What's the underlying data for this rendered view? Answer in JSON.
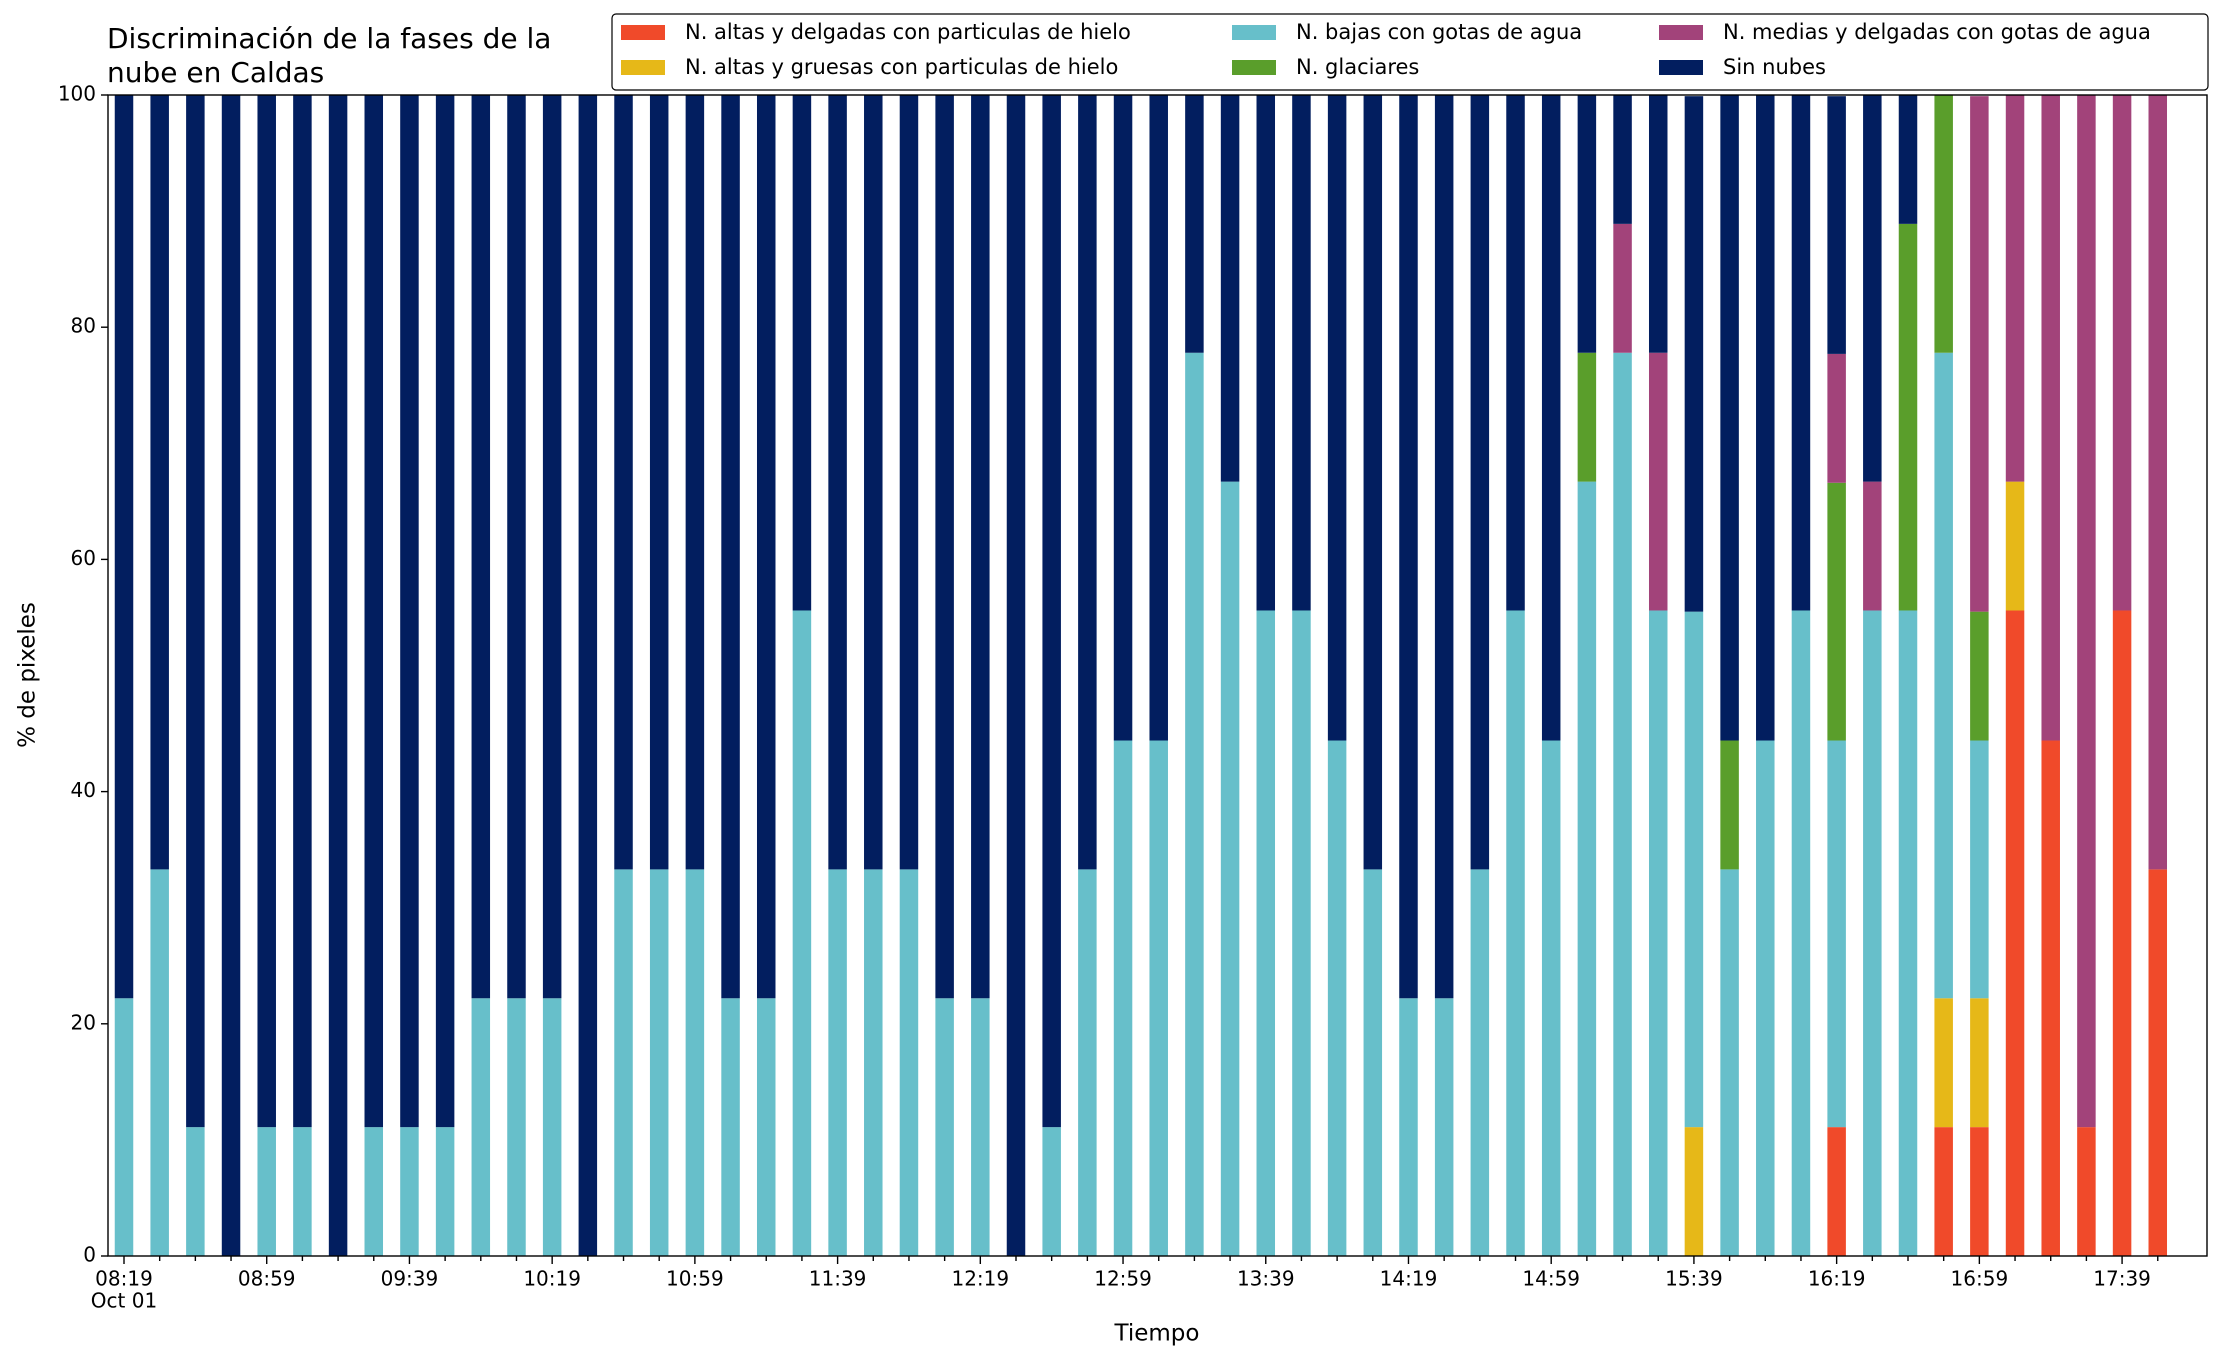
{
  "chart_data": {
    "type": "stacked_bar",
    "title": "Discriminación de la fases de la\nnube en Caldas",
    "xlabel": "Tiempo",
    "ylabel": "% de pixeles",
    "x_date_label": "Oct 01",
    "categories": [
      "08:19",
      null,
      null,
      null,
      "08:59",
      null,
      null,
      null,
      "09:39",
      null,
      null,
      null,
      "10:19",
      null,
      null,
      null,
      "10:59",
      null,
      null,
      null,
      "11:39",
      null,
      null,
      null,
      "12:19",
      null,
      null,
      null,
      "12:59",
      null,
      null,
      null,
      "13:39",
      null,
      null,
      null,
      "14:19",
      null,
      null,
      null,
      "14:59",
      null,
      null,
      null,
      "15:39",
      null,
      null,
      null,
      "16:19",
      null,
      null,
      null,
      "16:59",
      null,
      null,
      null,
      "17:39",
      null
    ],
    "ylim": [
      0,
      100
    ],
    "yticks": [
      0,
      20,
      40,
      60,
      80,
      100
    ],
    "legend_position": "upper right",
    "series": [
      {
        "name": "N. altas y delgadas con particulas de hielo",
        "color": "#f04a2a",
        "values": [
          0,
          0,
          0,
          0,
          0,
          0,
          0,
          0,
          0,
          0,
          0,
          0,
          0,
          0,
          0,
          0,
          0,
          0,
          0,
          0,
          0,
          0,
          0,
          0,
          0,
          0,
          0,
          0,
          0,
          0,
          0,
          0,
          0,
          0,
          0,
          0,
          0,
          0,
          0,
          0,
          0,
          0,
          0,
          0,
          0,
          0,
          0,
          0,
          11.1,
          0,
          0,
          11.1,
          11.1,
          55.6,
          44.4,
          11.1,
          55.6,
          33.3
        ]
      },
      {
        "name": "N. altas y gruesas con particulas de hielo",
        "color": "#e6b818",
        "values": [
          0,
          0,
          0,
          0,
          0,
          0,
          0,
          0,
          0,
          0,
          0,
          0,
          0,
          0,
          0,
          0,
          0,
          0,
          0,
          0,
          0,
          0,
          0,
          0,
          0,
          0,
          0,
          0,
          0,
          0,
          0,
          0,
          0,
          0,
          0,
          0,
          0,
          0,
          0,
          0,
          0,
          0,
          0,
          0,
          11.1,
          0,
          0,
          0,
          0,
          0,
          0,
          11.1,
          11.1,
          11.1,
          0,
          0,
          0,
          0
        ]
      },
      {
        "name": "N. bajas con gotas de agua",
        "color": "#67bfca",
        "values": [
          22.2,
          33.3,
          11.1,
          0,
          11.1,
          11.1,
          0,
          11.1,
          11.1,
          11.1,
          22.2,
          22.2,
          22.2,
          0,
          33.3,
          33.3,
          33.3,
          22.2,
          22.2,
          55.6,
          33.3,
          33.3,
          33.3,
          22.2,
          22.2,
          0,
          11.1,
          33.3,
          44.4,
          44.4,
          77.8,
          66.7,
          55.6,
          55.6,
          44.4,
          33.3,
          22.2,
          22.2,
          33.3,
          55.6,
          44.4,
          66.7,
          77.8,
          55.6,
          44.4,
          33.3,
          44.4,
          55.6,
          33.3,
          55.6,
          55.6,
          55.6,
          22.2,
          0,
          0,
          0,
          0,
          0
        ]
      },
      {
        "name": "N. glaciares",
        "color": "#5a9e2b",
        "values": [
          0,
          0,
          0,
          0,
          0,
          0,
          0,
          0,
          0,
          0,
          0,
          0,
          0,
          0,
          0,
          0,
          0,
          0,
          0,
          0,
          0,
          0,
          0,
          0,
          0,
          0,
          0,
          0,
          0,
          0,
          0,
          0,
          0,
          0,
          0,
          0,
          0,
          0,
          0,
          0,
          0,
          11.1,
          0,
          0,
          0,
          11.1,
          0,
          0,
          22.2,
          0,
          33.3,
          22.2,
          11.1,
          0,
          0,
          0,
          0,
          0
        ]
      },
      {
        "name": "N. medias y delgadas con gotas de agua",
        "color": "#a2437a",
        "values": [
          0,
          0,
          0,
          0,
          0,
          0,
          0,
          0,
          0,
          0,
          0,
          0,
          0,
          0,
          0,
          0,
          0,
          0,
          0,
          0,
          0,
          0,
          0,
          0,
          0,
          0,
          0,
          0,
          0,
          0,
          0,
          0,
          0,
          0,
          0,
          0,
          0,
          0,
          0,
          0,
          0,
          0,
          11.1,
          22.2,
          0,
          0,
          0,
          0,
          11.1,
          11.1,
          0,
          0,
          44.4,
          33.3,
          55.6,
          88.9,
          44.4,
          66.7
        ]
      },
      {
        "name": "Sin nubes",
        "color": "#021e5f",
        "values": [
          77.8,
          66.7,
          88.9,
          100,
          88.9,
          88.9,
          100,
          88.9,
          88.9,
          88.9,
          77.8,
          77.8,
          77.8,
          100,
          66.7,
          66.7,
          66.7,
          77.8,
          77.8,
          44.4,
          66.7,
          66.7,
          66.7,
          77.8,
          77.8,
          100,
          88.9,
          66.7,
          55.6,
          55.6,
          22.2,
          33.3,
          44.4,
          44.4,
          55.6,
          66.7,
          77.8,
          77.8,
          66.7,
          44.4,
          55.6,
          22.2,
          11.1,
          22.2,
          44.4,
          55.6,
          55.6,
          44.4,
          22.2,
          33.3,
          11.1,
          0,
          0,
          0,
          0,
          0,
          0,
          0
        ]
      }
    ]
  }
}
